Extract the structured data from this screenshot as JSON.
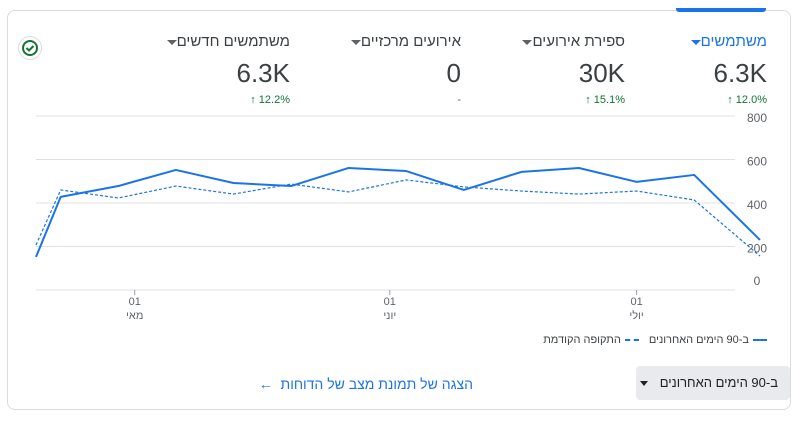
{
  "metrics": [
    {
      "name": "משתמשים",
      "value": "6.3K",
      "change": "12.0%"
    },
    {
      "name": "ספירת אירועים",
      "value": "30K",
      "change": "15.1%"
    },
    {
      "name": "אירועים מרכזיים",
      "value": "0",
      "change": "-"
    },
    {
      "name": "משתמשים חדשים",
      "value": "6.3K",
      "change": "12.2%"
    }
  ],
  "chart_data": {
    "type": "line",
    "x": [
      0,
      3,
      10,
      17,
      24,
      31,
      38,
      45,
      52,
      59,
      66,
      73,
      80,
      88
    ],
    "xlim": [
      0,
      88
    ],
    "xticks": [
      {
        "value": 12,
        "label": "01"
      },
      {
        "value": 43,
        "label": "01"
      },
      {
        "value": 73,
        "label": "01"
      }
    ],
    "xtick_months": [
      "מאי",
      "יוני",
      "יולי"
    ],
    "ylim": [
      0,
      800
    ],
    "yticks": [
      0,
      200,
      400,
      600,
      800
    ],
    "grid": true,
    "series": [
      {
        "name": "ב-90 הימים האחרונים",
        "color": "#1a73e8",
        "style": "solid",
        "values": [
          152,
          428,
          478,
          552,
          492,
          478,
          561,
          547,
          460,
          543,
          561,
          497,
          529,
          230
        ]
      },
      {
        "name": "התקופה הקודמת",
        "color": "#1a73e8",
        "style": "dashed",
        "values": [
          207,
          460,
          423,
          478,
          441,
          487,
          451,
          506,
          474,
          455,
          441,
          455,
          414,
          156
        ]
      }
    ]
  },
  "footer": {
    "range": "ב-90 הימים האחרונים",
    "link": "הצגה של תמונת מצב של הדוחות"
  }
}
